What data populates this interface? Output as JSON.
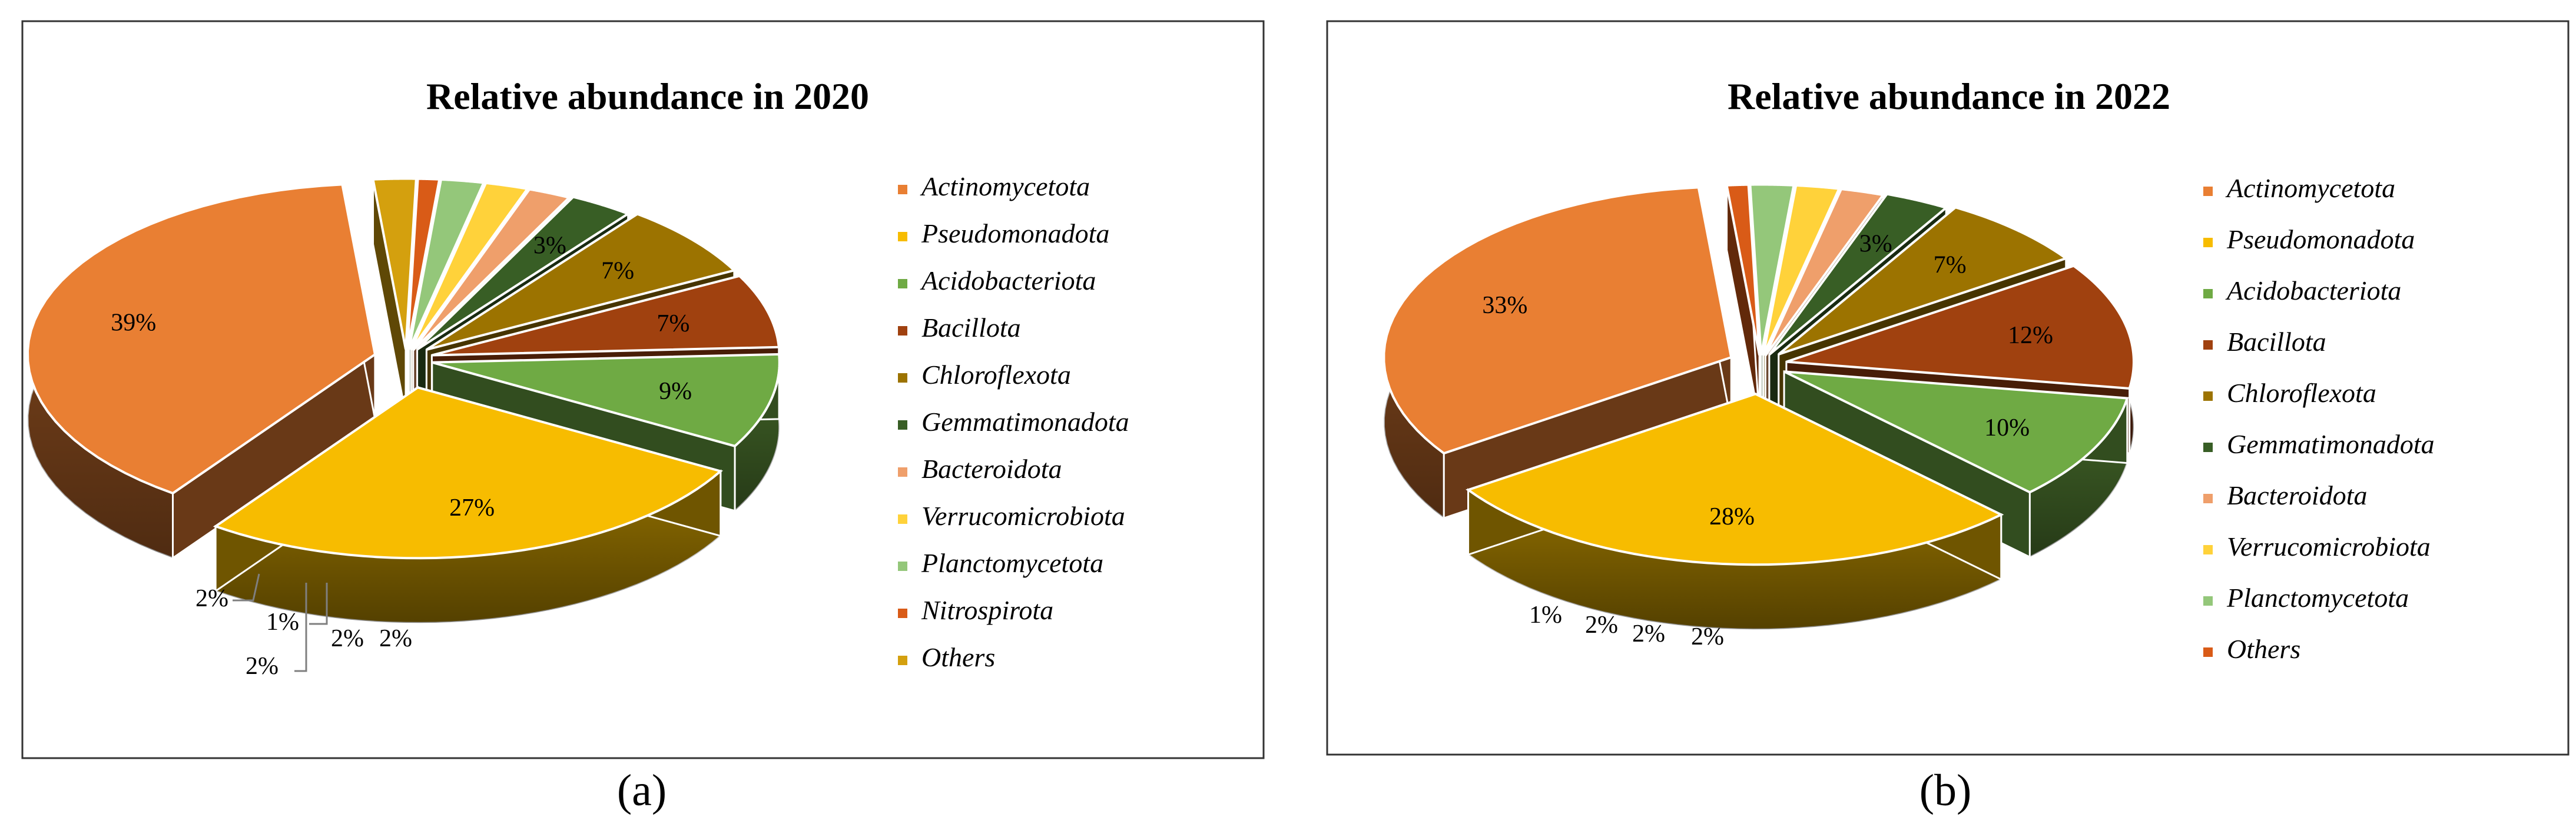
{
  "chart_data": [
    {
      "type": "pie",
      "panel": "a",
      "title": "Relative abundance in 2020",
      "slices": [
        {
          "label": "Actinomycetota",
          "value": 39,
          "display": "39%",
          "color": "#E97F33"
        },
        {
          "label": "Pseudomonadota",
          "value": 27,
          "display": "27%",
          "color": "#F7BC00"
        },
        {
          "label": "Acidobacteriota",
          "value": 9,
          "display": "9%",
          "color": "#6FAA44"
        },
        {
          "label": "Bacillota",
          "value": 7,
          "display": "7%",
          "color": "#A0410F"
        },
        {
          "label": "Chloroflexota",
          "value": 7,
          "display": "7%",
          "color": "#9C7300"
        },
        {
          "label": "Gemmatimonadota",
          "value": 3,
          "display": "3%",
          "color": "#385E25"
        },
        {
          "label": "Bacteroidota",
          "value": 2,
          "display": "2%",
          "color": "#EF9F6B"
        },
        {
          "label": "Verrucomicrobiota",
          "value": 2,
          "display": "2%",
          "color": "#FFD23A"
        },
        {
          "label": "Planctomycetota",
          "value": 2,
          "display": "2%",
          "color": "#94C77A"
        },
        {
          "label": "Nitrospirota",
          "value": 1,
          "display": "1%",
          "color": "#D95B17"
        },
        {
          "label": "Others",
          "value": 2,
          "display": "2%",
          "color": "#D4A00E"
        }
      ]
    },
    {
      "type": "pie",
      "panel": "b",
      "title": "Relative abundance in 2022",
      "slices": [
        {
          "label": "Actinomycetota",
          "value": 33,
          "display": "33%",
          "color": "#E97F33"
        },
        {
          "label": "Pseudomonadota",
          "value": 28,
          "display": "28%",
          "color": "#F7BC00"
        },
        {
          "label": "Acidobacteriota",
          "value": 10,
          "display": "10%",
          "color": "#6FAA44"
        },
        {
          "label": "Bacillota",
          "value": 12,
          "display": "12%",
          "color": "#A0410F"
        },
        {
          "label": "Chloroflexota",
          "value": 7,
          "display": "7%",
          "color": "#9C7300"
        },
        {
          "label": "Gemmatimonadota",
          "value": 3,
          "display": "3%",
          "color": "#385E25"
        },
        {
          "label": "Bacteroidota",
          "value": 2,
          "display": "2%",
          "color": "#EF9F6B"
        },
        {
          "label": "Verrucomicrobiota",
          "value": 2,
          "display": "2%",
          "color": "#FFD23A"
        },
        {
          "label": "Planctomycetota",
          "value": 2,
          "display": "2%",
          "color": "#94C77A"
        },
        {
          "label": "Others",
          "value": 1,
          "display": "1%",
          "color": "#D95B17"
        }
      ]
    }
  ],
  "captions": {
    "a": "(a)",
    "b": "(b)"
  }
}
